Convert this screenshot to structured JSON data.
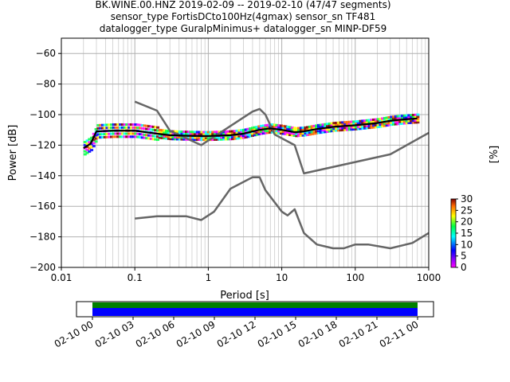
{
  "title_lines": [
    "BK.WINE.00.HNZ   2019-02-09 -- 2019-02-10  (47/47 segments)",
    "sensor_type FortisDCto100Hz(4gmax) sensor_sn TF481",
    "datalogger_type GuralpMinimus+ datalogger_sn MINP-DF59"
  ],
  "chart_data": {
    "type": "line",
    "xlabel": "Period [s]",
    "ylabel": "Power [dB]",
    "x_scale": "log",
    "xlim": [
      0.01,
      1000
    ],
    "ylim": [
      -200,
      -50
    ],
    "x_ticks": [
      0.01,
      0.1,
      1,
      10,
      100,
      1000
    ],
    "x_tick_labels": [
      "0.01",
      "0.1",
      "1",
      "10",
      "100",
      "1000"
    ],
    "y_ticks": [
      -200,
      -180,
      -160,
      -140,
      -120,
      -100,
      -80,
      -60
    ],
    "y_tick_labels": [
      "−200",
      "−180",
      "−160",
      "−140",
      "−120",
      "−100",
      "−80",
      "−60"
    ],
    "grid": true,
    "series": [
      {
        "color": "#666666",
        "x": [
          0.1,
          0.2,
          0.3,
          0.8,
          4.0,
          5.0,
          6.0,
          8.0,
          15.0,
          20.0,
          300.0,
          1000.0
        ],
        "y": [
          -91.5,
          -97.4,
          -110.5,
          -120.0,
          -98.0,
          -96.3,
          -100.0,
          -113.0,
          -120.0,
          -138.5,
          -126.0,
          -112.0
        ]
      },
      {
        "color": "#666666",
        "x": [
          0.1,
          0.2,
          0.5,
          0.8,
          1.2,
          2.0,
          4.0,
          5.0,
          6.0,
          10.0,
          12.0,
          15.0,
          20.0,
          30.0,
          50.0,
          70.0,
          100.0,
          150.0,
          300.0,
          600.0,
          1000.0
        ],
        "y": [
          -168.0,
          -166.5,
          -166.5,
          -169.0,
          -163.5,
          -148.5,
          -141.0,
          -141.0,
          -149.5,
          -163.5,
          -166.0,
          -162.0,
          -177.5,
          -185.0,
          -187.5,
          -187.5,
          -185.0,
          -185.0,
          -187.5,
          -184.0,
          -177.5
        ]
      },
      {
        "color": "#000000",
        "x": [
          0.02,
          0.025,
          0.03,
          0.05,
          0.1,
          0.2,
          0.3,
          0.5,
          0.8,
          1.0,
          2.0,
          3.0,
          4.0,
          5.0,
          7.0,
          10.0,
          15.0,
          20.0,
          30.0,
          50.0,
          100.0,
          200.0,
          300.0,
          500.0,
          700.0
        ],
        "y": [
          -122.0,
          -119.0,
          -111.0,
          -110.5,
          -110.5,
          -112.5,
          -113.5,
          -113.8,
          -114.0,
          -114.0,
          -113.5,
          -112.5,
          -111.0,
          -110.0,
          -109.0,
          -110.0,
          -111.5,
          -111.0,
          -109.5,
          -108.0,
          -107.0,
          -105.5,
          -104.0,
          -103.0,
          -102.5
        ]
      }
    ]
  },
  "colorbar": {
    "label": "[%]",
    "ticks": [
      0,
      5,
      10,
      15,
      20,
      25,
      30
    ],
    "tick_labels": [
      "0",
      "5",
      "10",
      "15",
      "20",
      "25",
      "30"
    ]
  },
  "timeline": {
    "ticks": [
      "02-10 00",
      "02-10 03",
      "02-10 06",
      "02-10 09",
      "02-10 12",
      "02-10 15",
      "02-10 18",
      "02-10 21",
      "02-11 00"
    ],
    "bar_colors": [
      "#008000",
      "#0000ff"
    ]
  }
}
